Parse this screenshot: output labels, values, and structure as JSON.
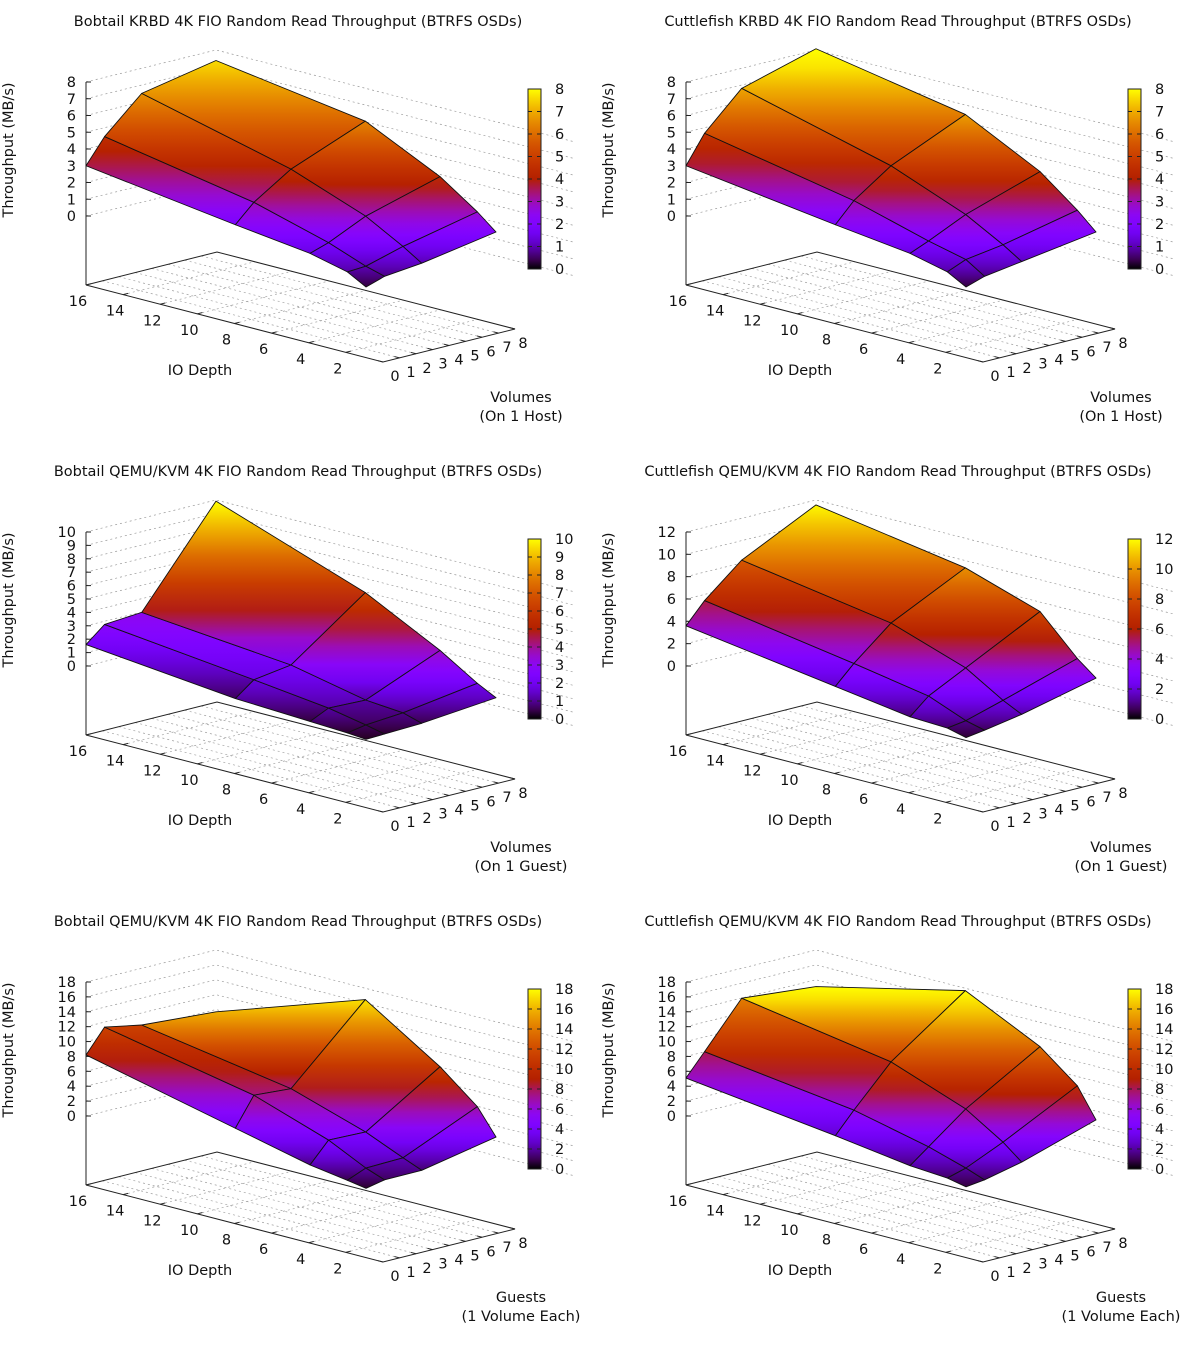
{
  "chart_data": [
    {
      "type": "surface3d",
      "title": "Bobtail KRBD 4K FIO Random Read Throughput (BTRFS OSDs)",
      "xlabel": "IO Depth",
      "ylabel_lines": [
        "Volumes",
        "(On 1 Host)"
      ],
      "zlabel": "Throughput (MB/s)",
      "x_ticks": [
        2,
        4,
        6,
        8,
        10,
        12,
        14,
        16
      ],
      "y_ticks": [
        0,
        1,
        2,
        3,
        4,
        5,
        6,
        7,
        8
      ],
      "z_ticks": [
        0,
        1,
        2,
        3,
        4,
        5,
        6,
        7,
        8
      ],
      "cb_ticks": [
        0,
        1,
        2,
        3,
        4,
        5,
        6,
        7,
        8
      ],
      "zlim": [
        0,
        8
      ],
      "io_depth": [
        1,
        2,
        4,
        8,
        16
      ],
      "volumes": [
        1,
        2,
        4,
        8
      ],
      "values": [
        [
          0.3,
          0.7,
          1.0,
          1.9
        ],
        [
          0.9,
          1.0,
          1.7,
          2.8
        ],
        [
          1.4,
          1.8,
          2.9,
          4.3
        ],
        [
          1.9,
          3.0,
          4.5,
          6.4
        ],
        [
          3.0,
          4.5,
          6.6,
          7.6
        ]
      ]
    },
    {
      "type": "surface3d",
      "title": "Cuttlefish KRBD 4K FIO Random Read Throughput (BTRFS OSDs)",
      "xlabel": "IO Depth",
      "ylabel_lines": [
        "Volumes",
        "(On 1 Host)"
      ],
      "zlabel": "Throughput (MB/s)",
      "x_ticks": [
        2,
        4,
        6,
        8,
        10,
        12,
        14,
        16
      ],
      "y_ticks": [
        0,
        1,
        2,
        3,
        4,
        5,
        6,
        7,
        8
      ],
      "z_ticks": [
        0,
        1,
        2,
        3,
        4,
        5,
        6,
        7,
        8
      ],
      "cb_ticks": [
        0,
        1,
        2,
        3,
        4,
        5,
        6,
        7,
        8
      ],
      "zlim": [
        0,
        8
      ],
      "io_depth": [
        1,
        2,
        4,
        8,
        16
      ],
      "volumes": [
        1,
        2,
        4,
        8
      ],
      "values": [
        [
          0.3,
          0.7,
          1.1,
          1.9
        ],
        [
          0.9,
          1.4,
          1.8,
          2.9
        ],
        [
          1.4,
          1.9,
          3.0,
          4.6
        ],
        [
          1.9,
          3.1,
          4.7,
          6.8
        ],
        [
          3.0,
          4.7,
          6.9,
          8.3
        ]
      ]
    },
    {
      "type": "surface3d",
      "title": "Bobtail QEMU/KVM 4K FIO Random Read Throughput (BTRFS OSDs)",
      "xlabel": "IO Depth",
      "ylabel_lines": [
        "Volumes",
        "(On 1 Guest)"
      ],
      "zlabel": "Throughput (MB/s)",
      "x_ticks": [
        2,
        4,
        6,
        8,
        10,
        12,
        14,
        16
      ],
      "y_ticks": [
        0,
        1,
        2,
        3,
        4,
        5,
        6,
        7,
        8
      ],
      "z_ticks": [
        0,
        1,
        2,
        3,
        4,
        5,
        6,
        7,
        8,
        9,
        10
      ],
      "cb_ticks": [
        0,
        1,
        2,
        3,
        4,
        5,
        6,
        7,
        8,
        9,
        10
      ],
      "zlim": [
        0,
        10
      ],
      "io_depth": [
        1,
        2,
        4,
        8,
        16
      ],
      "volumes": [
        1,
        2,
        4,
        8
      ],
      "values": [
        [
          0.2,
          0.3,
          0.5,
          1.2
        ],
        [
          0.3,
          0.6,
          0.9,
          1.9
        ],
        [
          0.4,
          1.1,
          1.1,
          3.6
        ],
        [
          0.6,
          1.7,
          2.2,
          6.4
        ],
        [
          1.6,
          2.8,
          3.1,
          10.2
        ]
      ]
    },
    {
      "type": "surface3d",
      "title": "Cuttlefish QEMU/KVM 4K FIO Random Read Throughput (BTRFS OSDs)",
      "xlabel": "IO Depth",
      "ylabel_lines": [
        "Volumes",
        "(On 1 Guest)"
      ],
      "zlabel": "Throughput (MB/s)",
      "x_ticks": [
        2,
        4,
        6,
        8,
        10,
        12,
        14,
        16
      ],
      "y_ticks": [
        0,
        1,
        2,
        3,
        4,
        5,
        6,
        7,
        8
      ],
      "z_ticks": [
        0,
        2,
        4,
        6,
        8,
        10,
        12
      ],
      "cb_ticks": [
        0,
        2,
        4,
        6,
        8,
        10,
        12
      ],
      "zlim": [
        0,
        12
      ],
      "io_depth": [
        1,
        2,
        4,
        8,
        16
      ],
      "volumes": [
        1,
        2,
        4,
        8
      ],
      "values": [
        [
          0.4,
          0.7,
          1.4,
          3.2
        ],
        [
          0.8,
          1.1,
          2.2,
          4.5
        ],
        [
          0.9,
          2.4,
          4.2,
          7.8
        ],
        [
          1.8,
          3.5,
          6.4,
          9.9
        ],
        [
          3.6,
          5.5,
          8.4,
          11.9
        ]
      ]
    },
    {
      "type": "surface3d",
      "title": "Bobtail QEMU/KVM 4K FIO Random Read Throughput (BTRFS OSDs)",
      "xlabel": "IO Depth",
      "ylabel_lines": [
        "Guests",
        "(1 Volume Each)"
      ],
      "zlabel": "Throughput (MB/s)",
      "x_ticks": [
        2,
        4,
        6,
        8,
        10,
        12,
        14,
        16
      ],
      "y_ticks": [
        0,
        1,
        2,
        3,
        4,
        5,
        6,
        7,
        8
      ],
      "z_ticks": [
        0,
        2,
        4,
        6,
        8,
        10,
        12,
        14,
        16,
        18
      ],
      "cb_ticks": [
        0,
        2,
        4,
        6,
        8,
        10,
        12,
        14,
        16,
        18
      ],
      "zlim": [
        0,
        18
      ],
      "io_depth": [
        1,
        2,
        4,
        8,
        16
      ],
      "volumes": [
        1,
        2,
        4,
        8
      ],
      "values": [
        [
          0.5,
          1.1,
          1.3,
          3.6
        ],
        [
          0.9,
          2.0,
          2.3,
          7.0
        ],
        [
          1.6,
          4.4,
          4.4,
          11.0
        ],
        [
          3.8,
          7.7,
          7.5,
          17.3
        ],
        [
          8.2,
          11.4,
          10.6,
          10.2
        ]
      ]
    },
    {
      "type": "surface3d",
      "title": "Cuttlefish QEMU/KVM 4K FIO Random Read Throughput (BTRFS OSDs)",
      "xlabel": "IO Depth",
      "ylabel_lines": [
        "Guests",
        "(1 Volume Each)"
      ],
      "zlabel": "Throughput (MB/s)",
      "x_ticks": [
        2,
        4,
        6,
        8,
        10,
        12,
        14,
        16
      ],
      "y_ticks": [
        0,
        1,
        2,
        3,
        4,
        5,
        6,
        7,
        8
      ],
      "z_ticks": [
        0,
        2,
        4,
        6,
        8,
        10,
        12,
        14,
        16,
        18
      ],
      "cb_ticks": [
        0,
        2,
        4,
        6,
        8,
        10,
        12,
        14,
        16,
        18
      ],
      "zlim": [
        0,
        18
      ],
      "io_depth": [
        1,
        2,
        4,
        8,
        16
      ],
      "volumes": [
        1,
        2,
        4,
        8
      ],
      "values": [
        [
          0.7,
          1.1,
          2.4,
          5.9
        ],
        [
          1.2,
          2.0,
          4.4,
          9.8
        ],
        [
          1.5,
          3.5,
          7.5,
          13.7
        ],
        [
          2.8,
          5.7,
          11.1,
          18.5
        ],
        [
          5.1,
          8.1,
          14.2,
          13.6
        ]
      ]
    }
  ]
}
